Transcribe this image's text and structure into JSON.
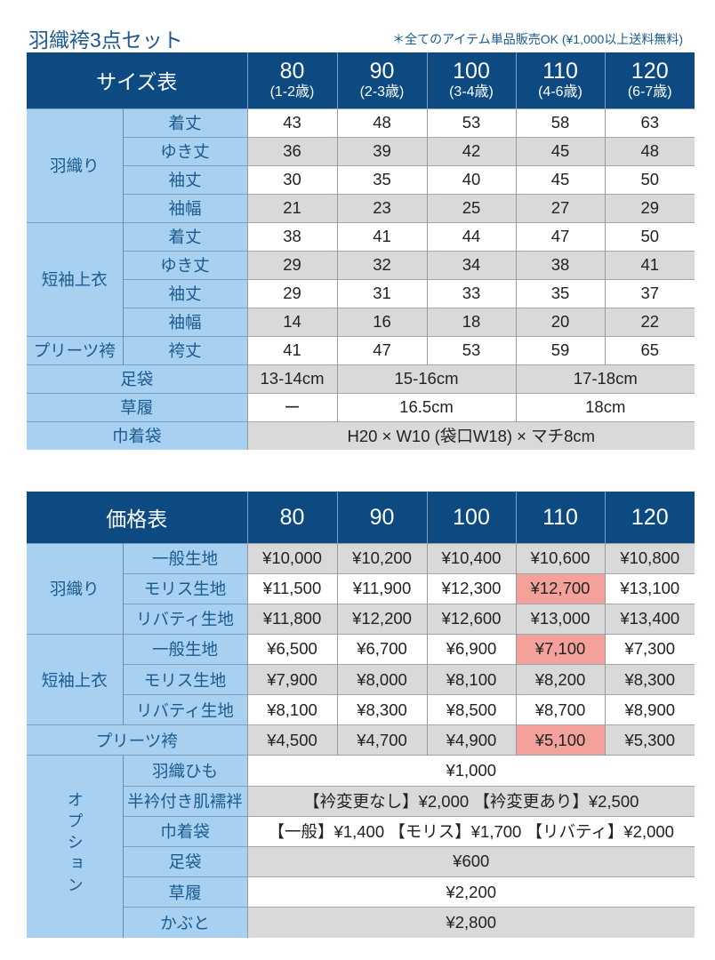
{
  "title": "羽織袴3点セット",
  "note": "＊全てのアイテム単品販売OK (¥1,000以上送料無料)",
  "colors": {
    "header": "#0d4a82",
    "label": "#a8d1f1",
    "shade": "#d9d9d9",
    "highlight": "#f4a19b"
  },
  "size_table": {
    "header_label": "サイズ表",
    "columns": [
      {
        "size": "80",
        "age": "(1-2歳)"
      },
      {
        "size": "90",
        "age": "(2-3歳)"
      },
      {
        "size": "100",
        "age": "(3-4歳)"
      },
      {
        "size": "110",
        "age": "(4-6歳)"
      },
      {
        "size": "120",
        "age": "(6-7歳)"
      }
    ],
    "groups": [
      {
        "name": "羽織り",
        "rows": [
          {
            "label": "着丈",
            "values": [
              "43",
              "48",
              "53",
              "58",
              "63"
            ]
          },
          {
            "label": "ゆき丈",
            "values": [
              "36",
              "39",
              "42",
              "45",
              "48"
            ]
          },
          {
            "label": "袖丈",
            "values": [
              "30",
              "35",
              "40",
              "45",
              "50"
            ]
          },
          {
            "label": "袖幅",
            "values": [
              "21",
              "23",
              "25",
              "27",
              "29"
            ]
          }
        ]
      },
      {
        "name": "短袖上衣",
        "rows": [
          {
            "label": "着丈",
            "values": [
              "38",
              "41",
              "44",
              "47",
              "50"
            ]
          },
          {
            "label": "ゆき丈",
            "values": [
              "29",
              "32",
              "34",
              "38",
              "41"
            ]
          },
          {
            "label": "袖丈",
            "values": [
              "29",
              "31",
              "33",
              "35",
              "37"
            ]
          },
          {
            "label": "袖幅",
            "values": [
              "14",
              "16",
              "18",
              "20",
              "22"
            ]
          }
        ]
      },
      {
        "name": "プリーツ袴",
        "rows": [
          {
            "label": "袴丈",
            "values": [
              "41",
              "47",
              "53",
              "59",
              "65"
            ]
          }
        ]
      }
    ],
    "extras": [
      {
        "label": "足袋",
        "cells": [
          {
            "text": "13-14cm",
            "span": 1
          },
          {
            "text": "15-16cm",
            "span": 2
          },
          {
            "text": "17-18cm",
            "span": 2
          }
        ]
      },
      {
        "label": "草履",
        "cells": [
          {
            "text": "ー",
            "span": 1
          },
          {
            "text": "16.5cm",
            "span": 2
          },
          {
            "text": "18cm",
            "span": 2
          }
        ]
      },
      {
        "label": "巾着袋",
        "cells": [
          {
            "text": "H20 × W10 (袋口W18) × マチ8cm",
            "span": 5
          }
        ]
      }
    ]
  },
  "price_table": {
    "header_label": "価格表",
    "columns": [
      "80",
      "90",
      "100",
      "110",
      "120"
    ],
    "groups": [
      {
        "name": "羽織り",
        "rows": [
          {
            "label": "一般生地",
            "values": [
              "¥10,000",
              "¥10,200",
              "¥10,400",
              "¥10,600",
              "¥10,800"
            ],
            "highlight": []
          },
          {
            "label": "モリス生地",
            "values": [
              "¥11,500",
              "¥11,900",
              "¥12,300",
              "¥12,700",
              "¥13,100"
            ],
            "highlight": [
              3
            ]
          },
          {
            "label": "リバティ生地",
            "values": [
              "¥11,800",
              "¥12,200",
              "¥12,600",
              "¥13,000",
              "¥13,400"
            ],
            "highlight": []
          }
        ]
      },
      {
        "name": "短袖上衣",
        "rows": [
          {
            "label": "一般生地",
            "values": [
              "¥6,500",
              "¥6,700",
              "¥6,900",
              "¥7,100",
              "¥7,300"
            ],
            "highlight": [
              3
            ]
          },
          {
            "label": "モリス生地",
            "values": [
              "¥7,900",
              "¥8,000",
              "¥8,100",
              "¥8,200",
              "¥8,300"
            ],
            "highlight": []
          },
          {
            "label": "リバティ生地",
            "values": [
              "¥8,100",
              "¥8,300",
              "¥8,500",
              "¥8,700",
              "¥8,900"
            ],
            "highlight": []
          }
        ]
      }
    ],
    "pleats": {
      "label": "プリーツ袴",
      "values": [
        "¥4,500",
        "¥4,700",
        "¥4,900",
        "¥5,100",
        "¥5,300"
      ],
      "highlight": [
        3
      ]
    },
    "options": {
      "name": "オプション",
      "rows": [
        {
          "label": "羽織ひも",
          "text": "¥1,000"
        },
        {
          "label": "半衿付き肌襦袢",
          "text": "【衿変更なし】¥2,000 【衿変更あり】¥2,500"
        },
        {
          "label": "巾着袋",
          "text": "【一般】¥1,400 【モリス】¥1,700 【リバティ】¥2,000"
        },
        {
          "label": "足袋",
          "text": "¥600"
        },
        {
          "label": "草履",
          "text": "¥2,200"
        },
        {
          "label": "かぶと",
          "text": "¥2,800"
        }
      ]
    }
  }
}
